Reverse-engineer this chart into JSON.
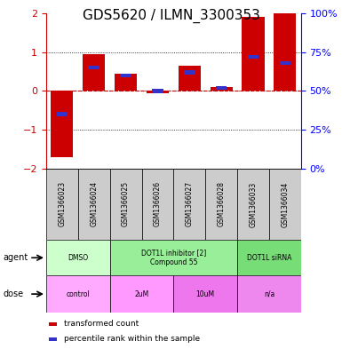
{
  "title": "GDS5620 / ILMN_3300353",
  "samples": [
    "GSM1366023",
    "GSM1366024",
    "GSM1366025",
    "GSM1366026",
    "GSM1366027",
    "GSM1366028",
    "GSM1366033",
    "GSM1366034"
  ],
  "bar_values": [
    -1.7,
    0.95,
    0.45,
    -0.05,
    0.65,
    0.1,
    1.9,
    2.0
  ],
  "percentile_values": [
    35,
    65,
    60,
    50,
    62,
    52,
    72,
    68
  ],
  "ylim": [
    -2,
    2
  ],
  "yticks_left": [
    -2,
    -1,
    0,
    1,
    2
  ],
  "yticks_right": [
    0,
    25,
    50,
    75,
    100
  ],
  "bar_color": "#cc0000",
  "percentile_color": "#3333cc",
  "agent_groups": [
    {
      "label": "DMSO",
      "start": 0,
      "end": 2,
      "color": "#ccffcc"
    },
    {
      "label": "DOT1L inhibitor [2]\nCompound 55",
      "start": 2,
      "end": 6,
      "color": "#99ee99"
    },
    {
      "label": "DOT1L siRNA",
      "start": 6,
      "end": 8,
      "color": "#77dd77"
    }
  ],
  "dose_groups": [
    {
      "label": "control",
      "start": 0,
      "end": 2,
      "color": "#ffaaff"
    },
    {
      "label": "2uM",
      "start": 2,
      "end": 4,
      "color": "#ff99ff"
    },
    {
      "label": "10uM",
      "start": 4,
      "end": 6,
      "color": "#ee77ee"
    },
    {
      "label": "n/a",
      "start": 6,
      "end": 8,
      "color": "#ee88ee"
    }
  ],
  "background_color": "#ffffff",
  "title_fontsize": 11,
  "tick_fontsize": 8,
  "bar_width": 0.7,
  "sample_bg": "#cccccc",
  "dotted_line_color": "#000000",
  "zero_line_color": "#cc0000"
}
